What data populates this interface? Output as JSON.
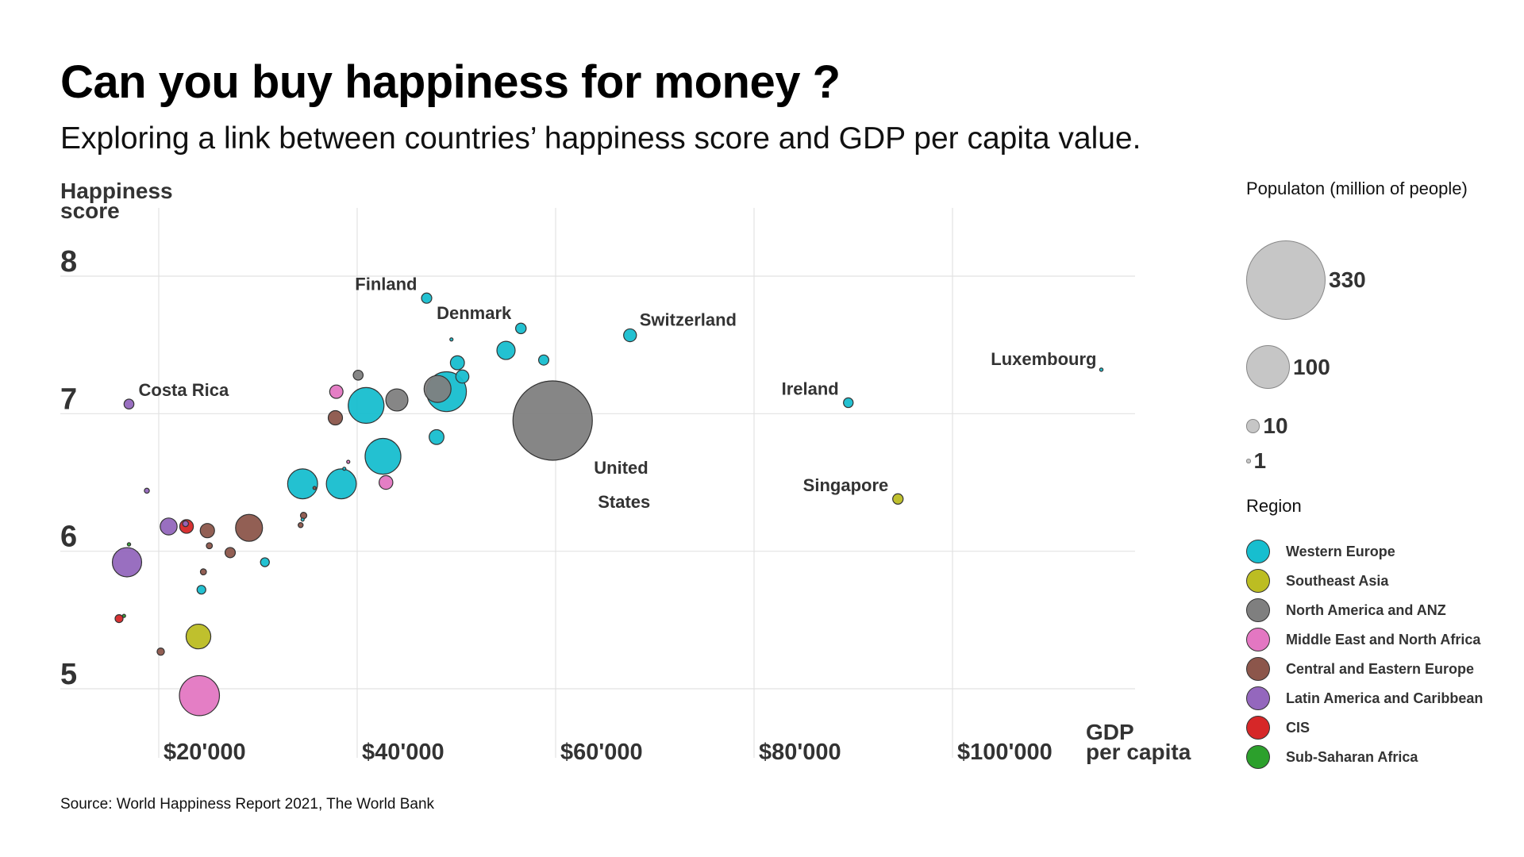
{
  "header": {
    "title": "Can you buy happiness for money ?",
    "subtitle": "Exploring a link between countries’ happiness score and GDP per capita value."
  },
  "source": "Source: World Happiness Report 2021, The World Bank",
  "legend": {
    "size_title": "Populaton (million of people)",
    "sizes": [
      {
        "label": "330",
        "value": 330
      },
      {
        "label": "100",
        "value": 100
      },
      {
        "label": "10",
        "value": 10
      },
      {
        "label": "1",
        "value": 1
      }
    ],
    "region_title": "Region",
    "regions": [
      {
        "name": "Western Europe",
        "color": "#17becf"
      },
      {
        "name": "Southeast Asia",
        "color": "#bcbd22"
      },
      {
        "name": "North America and ANZ",
        "color": "#7f7f7f"
      },
      {
        "name": "Middle East and North Africa",
        "color": "#e377c2"
      },
      {
        "name": "Central and Eastern Europe",
        "color": "#8c564b"
      },
      {
        "name": "Latin America and Caribbean",
        "color": "#9467bd"
      },
      {
        "name": "CIS",
        "color": "#d62728"
      },
      {
        "name": "Sub-Saharan Africa",
        "color": "#2ca02c"
      }
    ]
  },
  "chart_data": {
    "type": "scatter",
    "title": "Can you buy happiness for money ?",
    "subtitle": "Exploring a link between countries’ happiness score and GDP per capita value.",
    "xlabel": "GDP per capita",
    "ylabel": "Happiness score",
    "xlim": [
      16000,
      116000
    ],
    "ylim": [
      4.6,
      8.4
    ],
    "x_ticks": [
      {
        "value": 20000,
        "label": "$20'000"
      },
      {
        "value": 40000,
        "label": "$40'000"
      },
      {
        "value": 60000,
        "label": "$60'000"
      },
      {
        "value": 80000,
        "label": "$80'000"
      },
      {
        "value": 100000,
        "label": "$100'000"
      }
    ],
    "y_ticks": [
      {
        "value": 5,
        "label": "5"
      },
      {
        "value": 6,
        "label": "6"
      },
      {
        "value": 7,
        "label": "7"
      },
      {
        "value": 8,
        "label": "8"
      }
    ],
    "grid": true,
    "size_encoding": "population (millions)",
    "legend_position": "right",
    "points": [
      {
        "x": 47000,
        "y": 7.84,
        "pop": 5.5,
        "region": "Western Europe",
        "label": "Finland"
      },
      {
        "x": 56500,
        "y": 7.62,
        "pop": 5.8,
        "region": "Western Europe",
        "label": "Denmark"
      },
      {
        "x": 67500,
        "y": 7.57,
        "pop": 8.6,
        "region": "Western Europe",
        "label": "Switzerland"
      },
      {
        "x": 115000,
        "y": 7.32,
        "pop": 0.6,
        "region": "Western Europe",
        "label": "Luxembourg"
      },
      {
        "x": 89500,
        "y": 7.08,
        "pop": 4.9,
        "region": "Western Europe",
        "label": "Ireland"
      },
      {
        "x": 94500,
        "y": 6.38,
        "pop": 5.7,
        "region": "Southeast Asia",
        "label": "Singapore"
      },
      {
        "x": 59700,
        "y": 6.95,
        "pop": 330,
        "region": "North America and ANZ",
        "label": "United States"
      },
      {
        "x": 17000,
        "y": 7.07,
        "pop": 5.1,
        "region": "Latin America and Caribbean",
        "label": "Costa Rica"
      },
      {
        "x": 49500,
        "y": 7.54,
        "pop": 0.36,
        "region": "Western Europe"
      },
      {
        "x": 55000,
        "y": 7.46,
        "pop": 17.4,
        "region": "Western Europe"
      },
      {
        "x": 58800,
        "y": 7.39,
        "pop": 5.4,
        "region": "Western Europe"
      },
      {
        "x": 50100,
        "y": 7.37,
        "pop": 10.3,
        "region": "Western Europe"
      },
      {
        "x": 40100,
        "y": 7.28,
        "pop": 5.1,
        "region": "North America and ANZ"
      },
      {
        "x": 50600,
        "y": 7.27,
        "pop": 9.0,
        "region": "Western Europe"
      },
      {
        "x": 48100,
        "y": 7.18,
        "pop": 38,
        "region": "North America and ANZ"
      },
      {
        "x": 49000,
        "y": 7.16,
        "pop": 83,
        "region": "Western Europe"
      },
      {
        "x": 37900,
        "y": 7.16,
        "pop": 9.3,
        "region": "Middle East and North Africa"
      },
      {
        "x": 40900,
        "y": 7.06,
        "pop": 67,
        "region": "Western Europe"
      },
      {
        "x": 44000,
        "y": 7.1,
        "pop": 25.7,
        "region": "North America and ANZ"
      },
      {
        "x": 37800,
        "y": 6.97,
        "pop": 10.7,
        "region": "Central and Eastern Europe"
      },
      {
        "x": 48000,
        "y": 6.83,
        "pop": 11.5,
        "region": "Western Europe"
      },
      {
        "x": 42600,
        "y": 6.69,
        "pop": 67,
        "region": "Western Europe"
      },
      {
        "x": 39100,
        "y": 6.65,
        "pop": 0.5,
        "region": "Middle East and North Africa"
      },
      {
        "x": 42900,
        "y": 6.5,
        "pop": 9.9,
        "region": "Middle East and North Africa"
      },
      {
        "x": 34500,
        "y": 6.49,
        "pop": 47,
        "region": "Western Europe"
      },
      {
        "x": 38400,
        "y": 6.49,
        "pop": 47,
        "region": "Western Europe"
      },
      {
        "x": 38700,
        "y": 6.6,
        "pop": 0.5,
        "region": "Western Europe"
      },
      {
        "x": 35700,
        "y": 6.46,
        "pop": 0.44,
        "region": "Central and Eastern Europe"
      },
      {
        "x": 34600,
        "y": 6.26,
        "pop": 2.1,
        "region": "Central and Eastern Europe"
      },
      {
        "x": 34500,
        "y": 6.23,
        "pop": 0.5,
        "region": "Western Europe"
      },
      {
        "x": 34300,
        "y": 6.19,
        "pop": 1.3,
        "region": "Central and Eastern Europe"
      },
      {
        "x": 18800,
        "y": 6.44,
        "pop": 1.3,
        "region": "Latin America and Caribbean"
      },
      {
        "x": 24900,
        "y": 6.15,
        "pop": 10.7,
        "region": "Central and Eastern Europe"
      },
      {
        "x": 29100,
        "y": 6.17,
        "pop": 38,
        "region": "Central and Eastern Europe"
      },
      {
        "x": 25100,
        "y": 6.04,
        "pop": 1.9,
        "region": "Central and Eastern Europe"
      },
      {
        "x": 27200,
        "y": 5.99,
        "pop": 5.5,
        "region": "Central and Eastern Europe"
      },
      {
        "x": 30700,
        "y": 5.92,
        "pop": 4.1,
        "region": "Western Europe"
      },
      {
        "x": 21000,
        "y": 6.18,
        "pop": 15,
        "region": "Latin America and Caribbean"
      },
      {
        "x": 22800,
        "y": 6.18,
        "pop": 9.8,
        "region": "CIS"
      },
      {
        "x": 22700,
        "y": 6.2,
        "pop": 1.8,
        "region": "Latin America and Caribbean"
      },
      {
        "x": 17000,
        "y": 6.05,
        "pop": 0.6,
        "region": "Sub-Saharan Africa"
      },
      {
        "x": 16800,
        "y": 5.92,
        "pop": 45,
        "region": "Latin America and Caribbean"
      },
      {
        "x": 24500,
        "y": 5.85,
        "pop": 1.9,
        "region": "Central and Eastern Europe"
      },
      {
        "x": 24300,
        "y": 5.72,
        "pop": 4.0,
        "region": "Western Europe"
      },
      {
        "x": 16500,
        "y": 5.53,
        "pop": 0.4,
        "region": "Sub-Saharan Africa"
      },
      {
        "x": 16000,
        "y": 5.51,
        "pop": 3.3,
        "region": "CIS"
      },
      {
        "x": 24000,
        "y": 5.38,
        "pop": 32,
        "region": "Southeast Asia"
      },
      {
        "x": 20200,
        "y": 5.27,
        "pop": 2.8,
        "region": "Central and Eastern Europe"
      },
      {
        "x": 24100,
        "y": 4.95,
        "pop": 84,
        "region": "Middle East and North Africa"
      }
    ]
  }
}
